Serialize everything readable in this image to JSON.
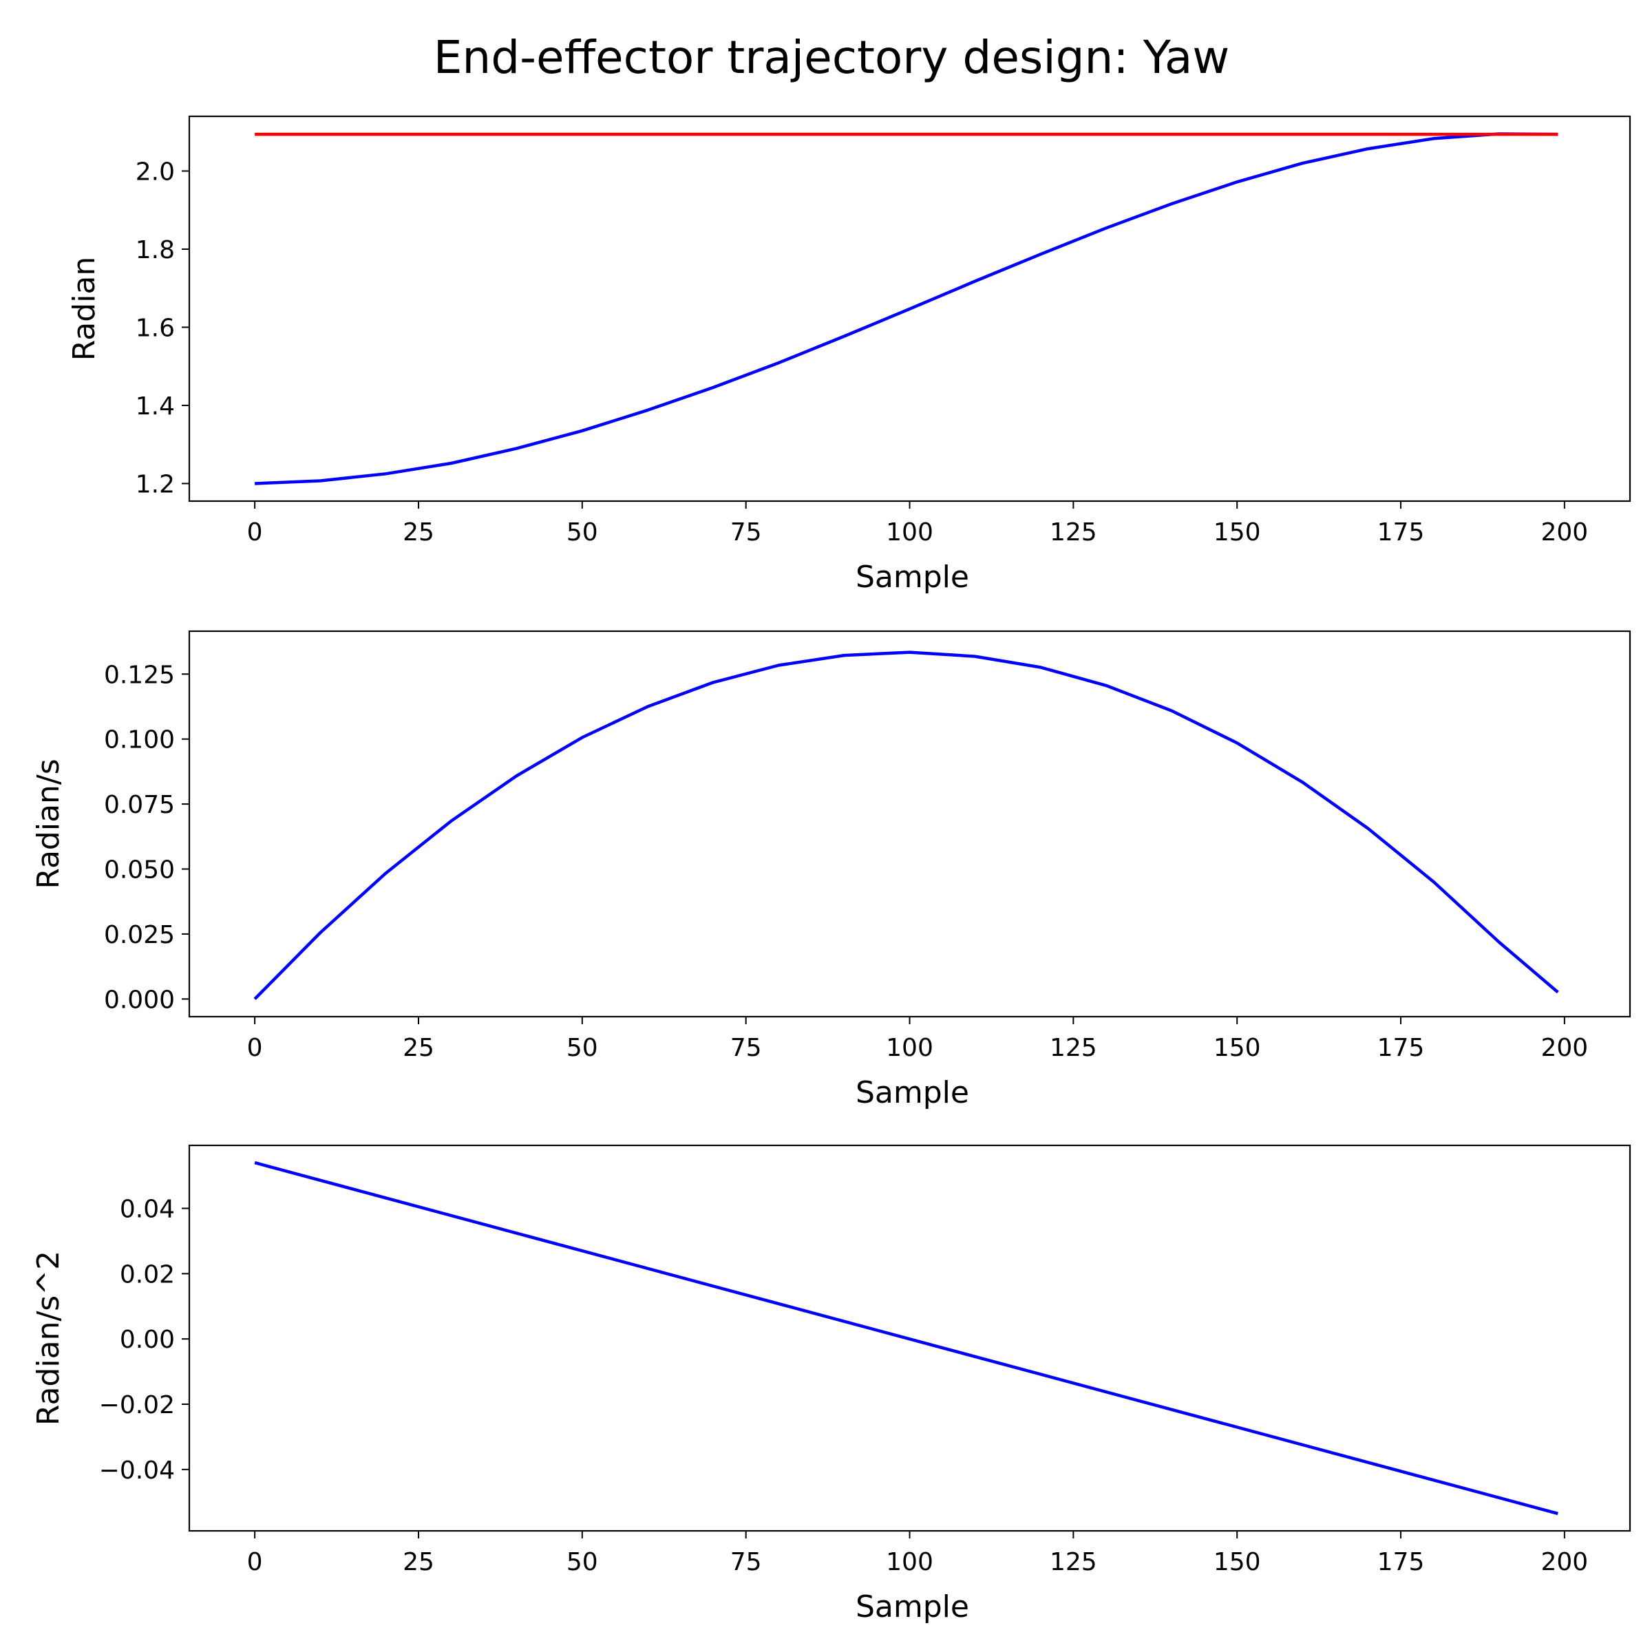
{
  "title": "End-effector trajectory design: Yaw",
  "colors": {
    "actual": "#0000ff",
    "target": "#ff0000",
    "axes": "#000000"
  },
  "chart_data": [
    {
      "type": "line",
      "xlabel": "Sample",
      "ylabel": "Radian",
      "xlim": [
        -10,
        210
      ],
      "ylim": [
        1.155,
        2.14
      ],
      "xticks": [
        0,
        25,
        50,
        75,
        100,
        125,
        150,
        175,
        200
      ],
      "yticks": [
        1.2,
        1.4,
        1.6,
        1.8,
        2.0
      ],
      "ytick_labels": [
        "1.2",
        "1.4",
        "1.6",
        "1.8",
        "2.0"
      ],
      "grid": false,
      "series": [
        {
          "role": "actual",
          "x": [
            0,
            10,
            20,
            30,
            40,
            50,
            60,
            70,
            80,
            90,
            100,
            110,
            120,
            130,
            140,
            150,
            160,
            170,
            180,
            190,
            199
          ],
          "y": [
            1.2,
            1.207,
            1.225,
            1.252,
            1.29,
            1.335,
            1.388,
            1.446,
            1.509,
            1.577,
            1.647,
            1.718,
            1.787,
            1.854,
            1.916,
            1.972,
            2.02,
            2.057,
            2.083,
            2.095,
            2.094
          ]
        },
        {
          "role": "target",
          "x": [
            0,
            199
          ],
          "y": [
            2.094,
            2.094
          ]
        }
      ]
    },
    {
      "type": "line",
      "xlabel": "Sample",
      "ylabel": "Radian/s",
      "xlim": [
        -10,
        210
      ],
      "ylim": [
        -0.0068,
        0.1415
      ],
      "xticks": [
        0,
        25,
        50,
        75,
        100,
        125,
        150,
        175,
        200
      ],
      "yticks": [
        0.0,
        0.025,
        0.05,
        0.075,
        0.1,
        0.125
      ],
      "ytick_labels": [
        "0.000",
        "0.025",
        "0.050",
        "0.075",
        "0.100",
        "0.125"
      ],
      "grid": false,
      "series": [
        {
          "role": "actual",
          "x": [
            0,
            10,
            20,
            30,
            40,
            50,
            60,
            70,
            80,
            90,
            100,
            110,
            120,
            130,
            140,
            150,
            160,
            170,
            180,
            190,
            199
          ],
          "y": [
            0.0,
            0.0255,
            0.0484,
            0.0685,
            0.0859,
            0.1006,
            0.1125,
            0.1218,
            0.1284,
            0.1322,
            0.1334,
            0.1318,
            0.1276,
            0.1206,
            0.1109,
            0.0985,
            0.0834,
            0.0656,
            0.0451,
            0.0219,
            0.0026
          ]
        }
      ]
    },
    {
      "type": "line",
      "xlabel": "Sample",
      "ylabel": "Radian/s^2",
      "xlim": [
        -10,
        210
      ],
      "ylim": [
        -0.0588,
        0.0593
      ],
      "xticks": [
        0,
        25,
        50,
        75,
        100,
        125,
        150,
        175,
        200
      ],
      "yticks": [
        -0.04,
        -0.02,
        0.0,
        0.02,
        0.04
      ],
      "ytick_labels": [
        "−0.04",
        "−0.02",
        "0.00",
        "0.02",
        "0.04"
      ],
      "grid": false,
      "series": [
        {
          "role": "actual",
          "x": [
            0,
            199
          ],
          "y": [
            0.054,
            -0.0535
          ]
        }
      ]
    }
  ]
}
